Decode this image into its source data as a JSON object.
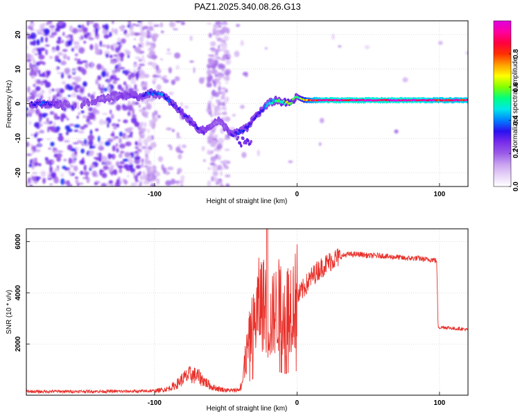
{
  "page_title": "PAZ1.2025.340.08.26.G13",
  "chart_data": [
    {
      "type": "heatmap",
      "name": "spectrogram",
      "xlabel": "Height of straight line (km)",
      "ylabel": "Frequency (Hz)",
      "xlim": [
        -190,
        120
      ],
      "ylim": [
        -24,
        24
      ],
      "xticks": [
        -100,
        0,
        100
      ],
      "xtick_labels": [
        "-100",
        "0",
        "100"
      ],
      "yticks": [
        -20,
        -10,
        0,
        10,
        20
      ],
      "ytick_labels": [
        "-20",
        "-10",
        "0",
        "10",
        "20"
      ],
      "colorbar": {
        "label": "Normalized spectral amplitude",
        "range": [
          0.0,
          1.0
        ],
        "ticks": [
          0.0,
          0.2,
          0.4,
          0.6,
          0.8
        ],
        "tick_labels": [
          "0.0",
          "0.2",
          "0.4",
          "0.6",
          "0.8"
        ],
        "colormap": [
          "#ffffff",
          "#e8d4f8",
          "#c9a3f0",
          "#9a5ce8",
          "#7a2cea",
          "#2a10f0",
          "#0080ff",
          "#00e8e8",
          "#00ff80",
          "#80ff00",
          "#ffff00",
          "#ffa000",
          "#ff3000",
          "#ff0040",
          "#ff00a0",
          "#e000e0"
        ]
      },
      "ridge": {
        "description": "dominant frequency trace (Hz) vs height (km)",
        "x": [
          -185,
          -180,
          -175,
          -170,
          -165,
          -160,
          -150,
          -140,
          -130,
          -120,
          -110,
          -105,
          -100,
          -95,
          -90,
          -85,
          -80,
          -75,
          -70,
          -65,
          -60,
          -55,
          -50,
          -45,
          -40,
          -35,
          -30,
          -25,
          -20,
          -15,
          -10,
          -5,
          0,
          5,
          10,
          20,
          40,
          60,
          80,
          100,
          120
        ],
        "y": [
          0,
          0,
          0,
          0,
          -0.5,
          0,
          0,
          1,
          2,
          2.5,
          2,
          3,
          3,
          2.5,
          1,
          -1,
          -3,
          -5,
          -7,
          -8,
          -6,
          -5,
          -7,
          -9,
          -8,
          -7,
          -4,
          -2,
          0,
          1,
          0.5,
          0,
          2,
          1,
          1,
          1,
          1,
          1,
          1,
          1,
          1
        ],
        "amplitude": [
          0.3,
          0.35,
          0.3,
          0.25,
          0.2,
          0.2,
          0.2,
          0.2,
          0.2,
          0.25,
          0.25,
          0.35,
          0.35,
          0.4,
          0.35,
          0.3,
          0.3,
          0.3,
          0.3,
          0.25,
          0.2,
          0.2,
          0.2,
          0.3,
          0.35,
          0.3,
          0.3,
          0.35,
          0.4,
          0.5,
          0.55,
          0.6,
          0.5,
          0.7,
          0.85,
          0.95,
          0.95,
          0.95,
          0.95,
          0.9,
          0.9
        ]
      }
    },
    {
      "type": "line",
      "name": "snr",
      "xlabel": "Height of straight line (km)",
      "ylabel": "SNR (10 * v/v)",
      "xlim": [
        -190,
        120
      ],
      "ylim": [
        0,
        6500
      ],
      "xticks": [
        -100,
        0,
        100
      ],
      "xtick_labels": [
        "-100",
        "0",
        "100"
      ],
      "yticks": [
        2000,
        4000,
        6000
      ],
      "ytick_labels": [
        "2000",
        "4000",
        "6000"
      ],
      "color": "#e8302a",
      "series": [
        {
          "name": "SNR",
          "x": [
            -190,
            -180,
            -170,
            -160,
            -150,
            -140,
            -130,
            -120,
            -110,
            -100,
            -95,
            -90,
            -85,
            -80,
            -75,
            -70,
            -65,
            -60,
            -55,
            -50,
            -45,
            -40,
            -38,
            -36,
            -34,
            -32,
            -30,
            -28,
            -26,
            -24,
            -22,
            -20,
            -18,
            -16,
            -14,
            -12,
            -10,
            -8,
            -6,
            -4,
            -2,
            0,
            5,
            10,
            15,
            20,
            25,
            30,
            35,
            40,
            45,
            50,
            55,
            60,
            65,
            70,
            75,
            80,
            85,
            90,
            95,
            98,
            99,
            100,
            105,
            110,
            115,
            120
          ],
          "y": [
            150,
            140,
            150,
            145,
            150,
            150,
            150,
            150,
            150,
            170,
            200,
            260,
            400,
            650,
            800,
            750,
            550,
            320,
            250,
            200,
            180,
            230,
            600,
            1400,
            2000,
            2400,
            2700,
            3300,
            3600,
            3700,
            3100,
            2800,
            2900,
            3300,
            3300,
            3600,
            3400,
            3300,
            3500,
            3700,
            3600,
            3800,
            4200,
            4600,
            4900,
            5100,
            5300,
            5400,
            5500,
            5500,
            5500,
            5450,
            5450,
            5450,
            5400,
            5400,
            5350,
            5350,
            5350,
            5300,
            5300,
            5250,
            2700,
            2650,
            2650,
            2600,
            2600,
            2550
          ]
        }
      ]
    }
  ]
}
